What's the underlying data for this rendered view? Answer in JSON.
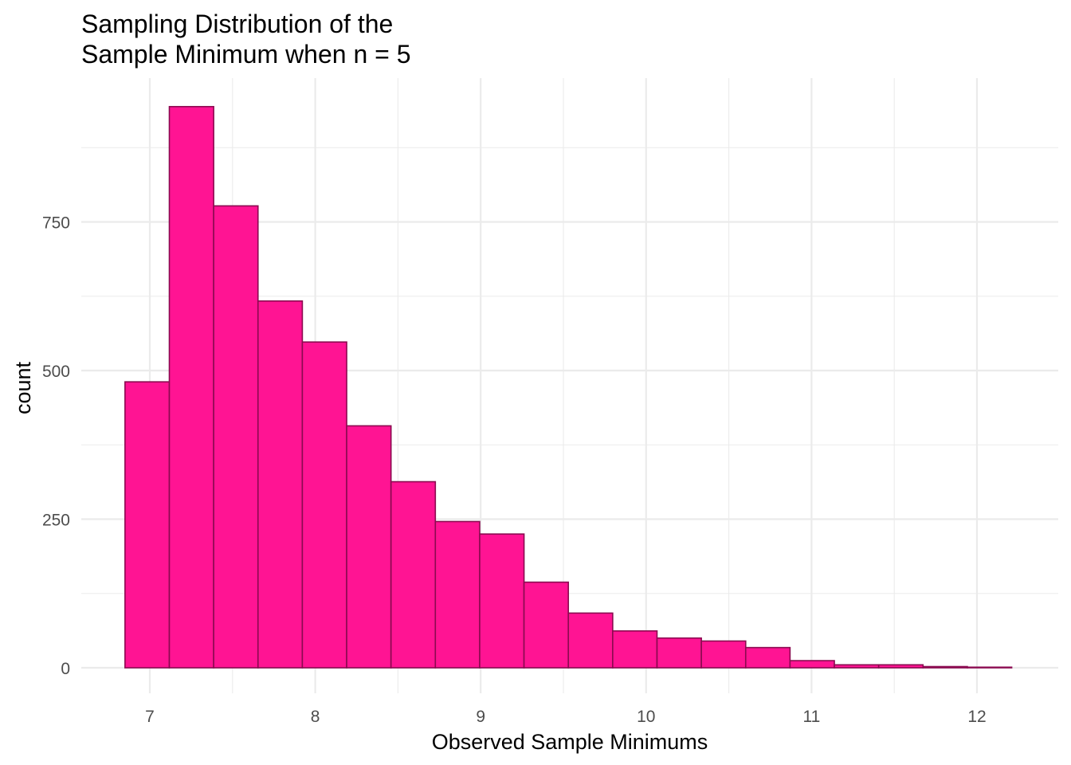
{
  "chart_data": {
    "type": "bar",
    "title_lines": [
      "Sampling Distribution of the",
      "Sample Minimum when n = 5"
    ],
    "xlabel": "Observed Sample Minimums",
    "ylabel": "count",
    "xlim": [
      6.75,
      12.35
    ],
    "ylim": [
      0,
      1000
    ],
    "x_ticks": [
      7,
      8,
      9,
      10,
      11,
      12
    ],
    "y_ticks": [
      0,
      250,
      500,
      750
    ],
    "bin_width": 0.268,
    "bins": [
      {
        "x0": 6.85,
        "count": 481
      },
      {
        "x0": 7.118,
        "count": 944
      },
      {
        "x0": 7.386,
        "count": 777
      },
      {
        "x0": 7.654,
        "count": 617
      },
      {
        "x0": 7.922,
        "count": 548
      },
      {
        "x0": 8.19,
        "count": 407
      },
      {
        "x0": 8.458,
        "count": 313
      },
      {
        "x0": 8.726,
        "count": 246
      },
      {
        "x0": 8.994,
        "count": 225
      },
      {
        "x0": 9.262,
        "count": 144
      },
      {
        "x0": 9.53,
        "count": 92
      },
      {
        "x0": 9.798,
        "count": 62
      },
      {
        "x0": 10.066,
        "count": 50
      },
      {
        "x0": 10.334,
        "count": 45
      },
      {
        "x0": 10.602,
        "count": 34
      },
      {
        "x0": 10.87,
        "count": 12
      },
      {
        "x0": 11.138,
        "count": 5
      },
      {
        "x0": 11.406,
        "count": 5
      },
      {
        "x0": 11.674,
        "count": 2
      },
      {
        "x0": 11.942,
        "count": 1
      }
    ],
    "fill_color": "#FF1493",
    "stroke_color": "#8B0A50",
    "grid": true,
    "grid_color": "#EBEBEB"
  }
}
